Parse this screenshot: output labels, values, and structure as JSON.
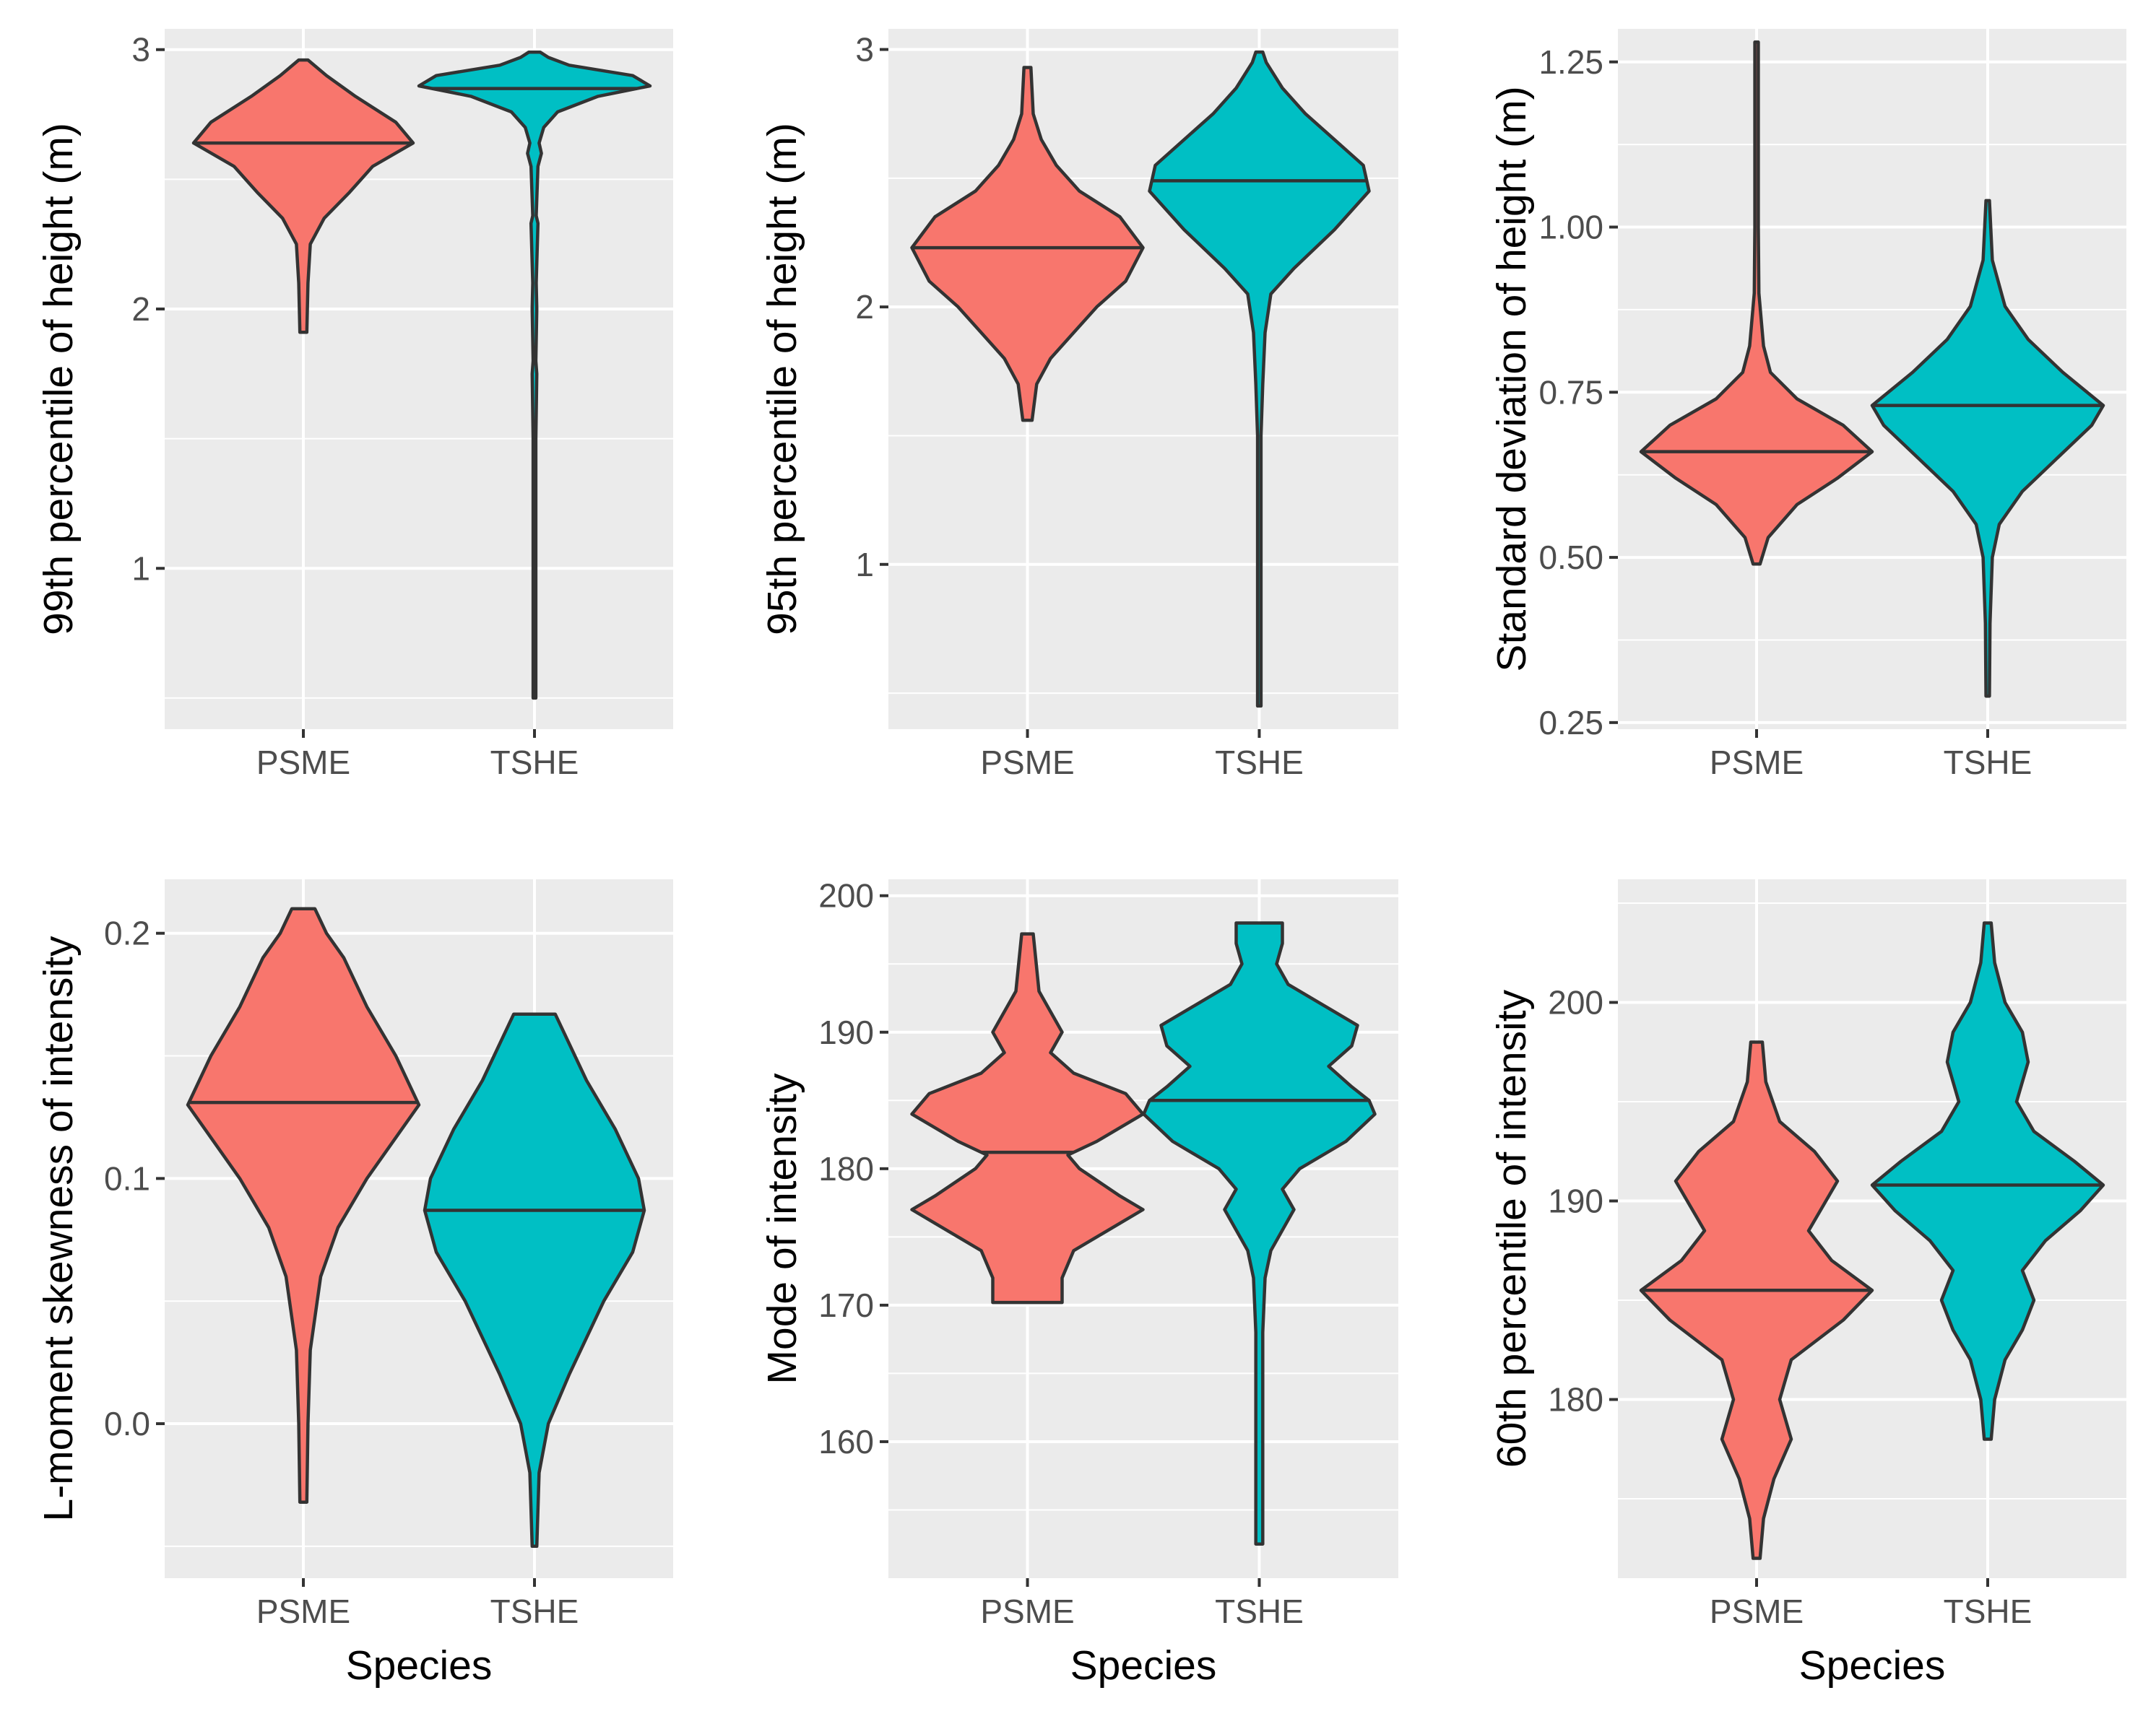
{
  "chart_data": [
    {
      "type": "violin",
      "ylabel": "99th percentile of height (m)",
      "xlabel": "",
      "categories": [
        "PSME",
        "TSHE"
      ],
      "ylim": [
        0.38,
        3.08
      ],
      "yticks": [
        1,
        2,
        3
      ],
      "ytick_labels": [
        "1",
        "2",
        "3"
      ],
      "grid": true,
      "fill_colors": [
        "#F8766D",
        "#00BFC4"
      ],
      "violins": [
        {
          "category": "PSME",
          "min": 1.91,
          "max": 2.96,
          "median": 2.64,
          "profile": [
            [
              1.91,
              0.03
            ],
            [
              2.1,
              0.04
            ],
            [
              2.25,
              0.06
            ],
            [
              2.35,
              0.18
            ],
            [
              2.45,
              0.4
            ],
            [
              2.55,
              0.6
            ],
            [
              2.64,
              0.95
            ],
            [
              2.72,
              0.8
            ],
            [
              2.82,
              0.45
            ],
            [
              2.9,
              0.2
            ],
            [
              2.96,
              0.04
            ]
          ]
        },
        {
          "category": "TSHE",
          "min": 0.5,
          "max": 2.99,
          "median": 2.85,
          "profile": [
            [
              0.5,
              0.012
            ],
            [
              1.0,
              0.012
            ],
            [
              1.5,
              0.012
            ],
            [
              1.75,
              0.02
            ],
            [
              1.8,
              0.012
            ],
            [
              2.0,
              0.02
            ],
            [
              2.1,
              0.015
            ],
            [
              2.33,
              0.03
            ],
            [
              2.36,
              0.015
            ],
            [
              2.55,
              0.03
            ],
            [
              2.6,
              0.06
            ],
            [
              2.64,
              0.04
            ],
            [
              2.7,
              0.08
            ],
            [
              2.76,
              0.2
            ],
            [
              2.82,
              0.55
            ],
            [
              2.86,
              1.0
            ],
            [
              2.9,
              0.85
            ],
            [
              2.94,
              0.3
            ],
            [
              2.97,
              0.12
            ],
            [
              2.99,
              0.05
            ]
          ]
        }
      ]
    },
    {
      "type": "violin",
      "ylabel": "95th percentile of height (m)",
      "xlabel": "",
      "categories": [
        "PSME",
        "TSHE"
      ],
      "ylim": [
        0.36,
        3.08
      ],
      "yticks": [
        1,
        2,
        3
      ],
      "ytick_labels": [
        "1",
        "2",
        "3"
      ],
      "grid": true,
      "fill_colors": [
        "#F8766D",
        "#00BFC4"
      ],
      "violins": [
        {
          "category": "PSME",
          "min": 1.56,
          "max": 2.93,
          "median": 2.23,
          "profile": [
            [
              1.56,
              0.04
            ],
            [
              1.7,
              0.08
            ],
            [
              1.8,
              0.2
            ],
            [
              1.9,
              0.4
            ],
            [
              2.0,
              0.6
            ],
            [
              2.1,
              0.85
            ],
            [
              2.23,
              1.0
            ],
            [
              2.35,
              0.8
            ],
            [
              2.45,
              0.45
            ],
            [
              2.55,
              0.25
            ],
            [
              2.65,
              0.12
            ],
            [
              2.75,
              0.05
            ],
            [
              2.93,
              0.03
            ]
          ]
        },
        {
          "category": "TSHE",
          "min": 0.45,
          "max": 2.99,
          "median": 2.49,
          "profile": [
            [
              0.45,
              0.015
            ],
            [
              1.0,
              0.015
            ],
            [
              1.5,
              0.015
            ],
            [
              1.7,
              0.03
            ],
            [
              1.9,
              0.05
            ],
            [
              2.05,
              0.1
            ],
            [
              2.15,
              0.3
            ],
            [
              2.3,
              0.65
            ],
            [
              2.45,
              0.95
            ],
            [
              2.55,
              0.9
            ],
            [
              2.65,
              0.65
            ],
            [
              2.75,
              0.4
            ],
            [
              2.85,
              0.2
            ],
            [
              2.95,
              0.06
            ],
            [
              2.99,
              0.03
            ]
          ]
        }
      ]
    },
    {
      "type": "violin",
      "ylabel": "Standard deviation of height (m)",
      "xlabel": "",
      "categories": [
        "PSME",
        "TSHE"
      ],
      "ylim": [
        0.24,
        1.3
      ],
      "yticks": [
        0.25,
        0.5,
        0.75,
        1.0,
        1.25
      ],
      "ytick_labels": [
        "0.25",
        "0.50",
        "0.75",
        "1.00",
        "1.25"
      ],
      "grid": true,
      "fill_colors": [
        "#F8766D",
        "#00BFC4"
      ],
      "violins": [
        {
          "category": "PSME",
          "min": 0.49,
          "max": 1.28,
          "median": 0.66,
          "profile": [
            [
              0.49,
              0.03
            ],
            [
              0.53,
              0.1
            ],
            [
              0.58,
              0.35
            ],
            [
              0.62,
              0.7
            ],
            [
              0.66,
              1.0
            ],
            [
              0.7,
              0.75
            ],
            [
              0.74,
              0.35
            ],
            [
              0.78,
              0.12
            ],
            [
              0.82,
              0.06
            ],
            [
              0.9,
              0.02
            ],
            [
              1.0,
              0.015
            ],
            [
              1.28,
              0.015
            ]
          ]
        },
        {
          "category": "TSHE",
          "min": 0.29,
          "max": 1.04,
          "median": 0.73,
          "profile": [
            [
              0.29,
              0.015
            ],
            [
              0.4,
              0.02
            ],
            [
              0.5,
              0.04
            ],
            [
              0.55,
              0.1
            ],
            [
              0.6,
              0.3
            ],
            [
              0.65,
              0.6
            ],
            [
              0.7,
              0.9
            ],
            [
              0.73,
              1.0
            ],
            [
              0.78,
              0.65
            ],
            [
              0.83,
              0.35
            ],
            [
              0.88,
              0.15
            ],
            [
              0.95,
              0.04
            ],
            [
              1.04,
              0.015
            ]
          ]
        }
      ]
    },
    {
      "type": "violin",
      "ylabel": "L-moment skewness of intensity",
      "xlabel": "Species",
      "categories": [
        "PSME",
        "TSHE"
      ],
      "ylim": [
        -0.063,
        0.222
      ],
      "yticks": [
        0.0,
        0.1,
        0.2
      ],
      "ytick_labels": [
        "0.0",
        "0.1",
        "0.2"
      ],
      "grid": true,
      "fill_colors": [
        "#F8766D",
        "#00BFC4"
      ],
      "violins": [
        {
          "category": "PSME",
          "min": -0.032,
          "max": 0.21,
          "median": 0.131,
          "profile": [
            [
              -0.032,
              0.03
            ],
            [
              0.0,
              0.04
            ],
            [
              0.03,
              0.06
            ],
            [
              0.06,
              0.15
            ],
            [
              0.08,
              0.3
            ],
            [
              0.1,
              0.55
            ],
            [
              0.12,
              0.85
            ],
            [
              0.13,
              1.0
            ],
            [
              0.15,
              0.8
            ],
            [
              0.17,
              0.55
            ],
            [
              0.19,
              0.35
            ],
            [
              0.2,
              0.2
            ],
            [
              0.21,
              0.1
            ]
          ]
        },
        {
          "category": "TSHE",
          "min": -0.05,
          "max": 0.167,
          "median": 0.087,
          "profile": [
            [
              -0.05,
              0.02
            ],
            [
              -0.02,
              0.04
            ],
            [
              0.0,
              0.12
            ],
            [
              0.02,
              0.3
            ],
            [
              0.05,
              0.6
            ],
            [
              0.07,
              0.85
            ],
            [
              0.087,
              0.95
            ],
            [
              0.1,
              0.9
            ],
            [
              0.12,
              0.7
            ],
            [
              0.14,
              0.45
            ],
            [
              0.16,
              0.25
            ],
            [
              0.167,
              0.18
            ]
          ]
        }
      ]
    },
    {
      "type": "violin",
      "ylabel": "Mode of intensity",
      "xlabel": "Species",
      "categories": [
        "PSME",
        "TSHE"
      ],
      "ylim": [
        150.0,
        201.2
      ],
      "yticks": [
        160,
        170,
        180,
        190,
        200
      ],
      "ytick_labels": [
        "160",
        "170",
        "180",
        "190",
        "200"
      ],
      "grid": true,
      "fill_colors": [
        "#F8766D",
        "#00BFC4"
      ],
      "violins": [
        {
          "category": "PSME",
          "min": 170.2,
          "max": 197.2,
          "median": 181.2,
          "profile": [
            [
              170.2,
              0.3
            ],
            [
              172,
              0.3
            ],
            [
              174,
              0.4
            ],
            [
              176,
              0.8
            ],
            [
              177,
              1.0
            ],
            [
              178,
              0.8
            ],
            [
              180,
              0.45
            ],
            [
              181,
              0.35
            ],
            [
              182,
              0.6
            ],
            [
              184,
              1.0
            ],
            [
              185.5,
              0.85
            ],
            [
              187,
              0.4
            ],
            [
              188.5,
              0.2
            ],
            [
              190,
              0.3
            ],
            [
              191.5,
              0.2
            ],
            [
              193,
              0.1
            ],
            [
              197.2,
              0.05
            ]
          ]
        },
        {
          "category": "TSHE",
          "min": 152.5,
          "max": 198.0,
          "median": 185.0,
          "profile": [
            [
              152.5,
              0.03
            ],
            [
              160,
              0.03
            ],
            [
              168,
              0.03
            ],
            [
              172,
              0.05
            ],
            [
              174,
              0.1
            ],
            [
              177,
              0.3
            ],
            [
              178.5,
              0.2
            ],
            [
              180,
              0.35
            ],
            [
              182,
              0.75
            ],
            [
              184,
              1.0
            ],
            [
              185,
              0.95
            ],
            [
              186,
              0.8
            ],
            [
              187.5,
              0.6
            ],
            [
              189,
              0.8
            ],
            [
              190.5,
              0.85
            ],
            [
              192,
              0.55
            ],
            [
              193.5,
              0.25
            ],
            [
              195,
              0.15
            ],
            [
              196.5,
              0.2
            ],
            [
              198,
              0.2
            ]
          ]
        }
      ]
    },
    {
      "type": "violin",
      "ylabel": "60th percentile of intensity",
      "xlabel": "Species",
      "categories": [
        "PSME",
        "TSHE"
      ],
      "ylim": [
        171.0,
        206.2
      ],
      "yticks": [
        180,
        190,
        200
      ],
      "ytick_labels": [
        "180",
        "190",
        "200"
      ],
      "grid": true,
      "fill_colors": [
        "#F8766D",
        "#00BFC4"
      ],
      "violins": [
        {
          "category": "PSME",
          "min": 172.0,
          "max": 198.0,
          "median": 185.5,
          "profile": [
            [
              172,
              0.03
            ],
            [
              174,
              0.06
            ],
            [
              176,
              0.15
            ],
            [
              178,
              0.3
            ],
            [
              180,
              0.2
            ],
            [
              182,
              0.3
            ],
            [
              184,
              0.75
            ],
            [
              185.5,
              1.0
            ],
            [
              187,
              0.65
            ],
            [
              188.5,
              0.45
            ],
            [
              190,
              0.6
            ],
            [
              191,
              0.7
            ],
            [
              192.5,
              0.5
            ],
            [
              194,
              0.2
            ],
            [
              196,
              0.08
            ],
            [
              198,
              0.05
            ]
          ]
        },
        {
          "category": "TSHE",
          "min": 178.0,
          "max": 204.0,
          "median": 190.8,
          "profile": [
            [
              178,
              0.03
            ],
            [
              180,
              0.06
            ],
            [
              182,
              0.15
            ],
            [
              183.5,
              0.3
            ],
            [
              185,
              0.4
            ],
            [
              186.5,
              0.3
            ],
            [
              188,
              0.5
            ],
            [
              189.5,
              0.8
            ],
            [
              190.8,
              1.0
            ],
            [
              192,
              0.75
            ],
            [
              193.5,
              0.4
            ],
            [
              195,
              0.25
            ],
            [
              197,
              0.35
            ],
            [
              198.5,
              0.3
            ],
            [
              200,
              0.15
            ],
            [
              202,
              0.06
            ],
            [
              204,
              0.03
            ]
          ]
        }
      ]
    }
  ]
}
